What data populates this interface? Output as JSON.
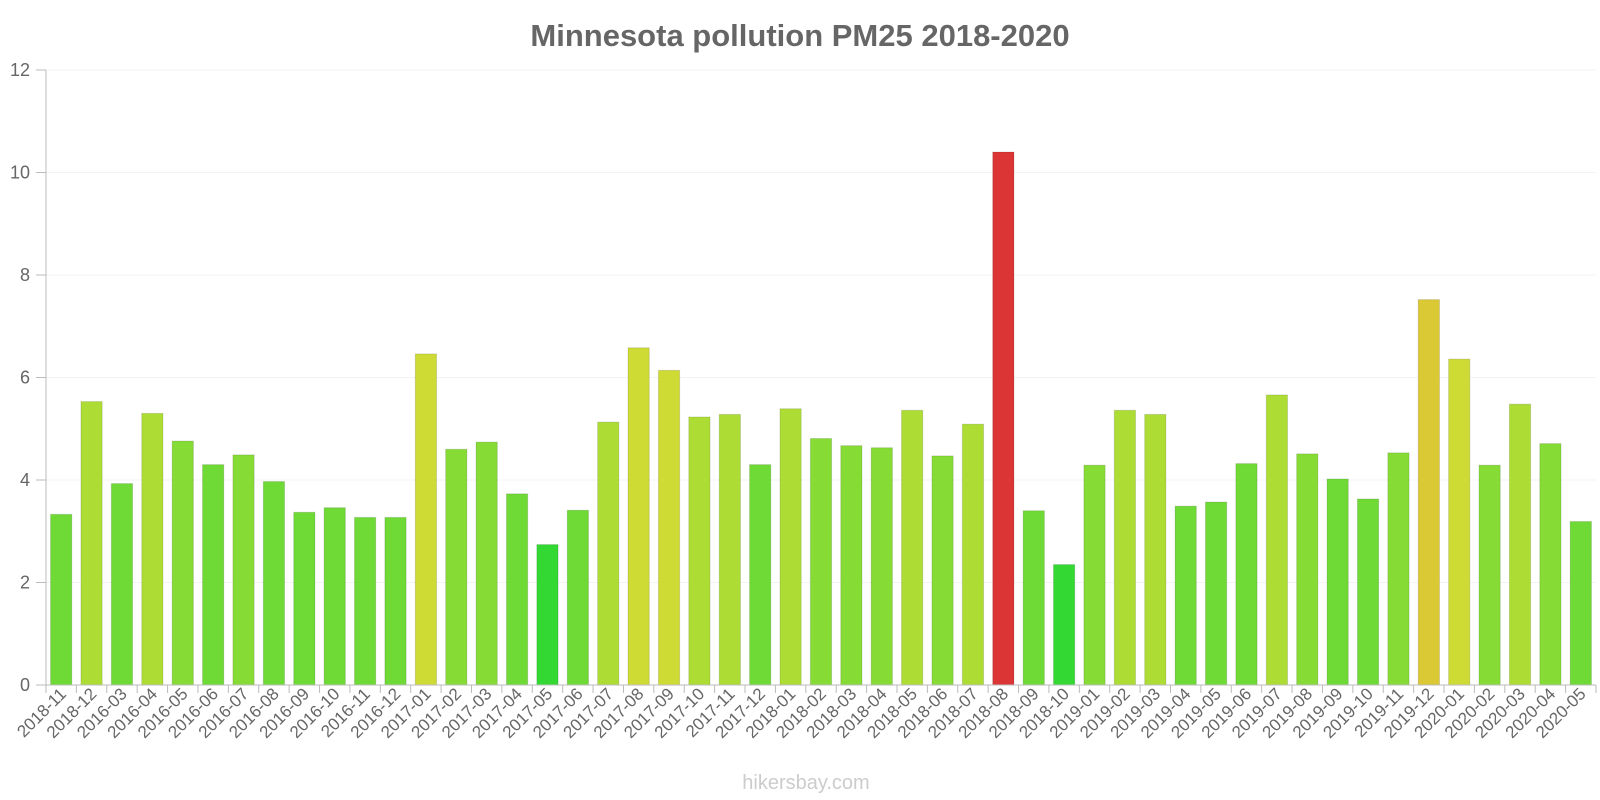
{
  "chart_data": {
    "type": "bar",
    "title": "Minnesota pollution PM25 2018-2020",
    "xlabel": "",
    "ylabel": "",
    "ylim": [
      0,
      12
    ],
    "yticks": [
      0,
      2,
      4,
      6,
      8,
      10,
      12
    ],
    "grid": true,
    "legend": "none",
    "categories": [
      "2018-11",
      "2018-12",
      "2016-03",
      "2016-04",
      "2016-05",
      "2016-06",
      "2016-07",
      "2016-08",
      "2016-09",
      "2016-10",
      "2016-11",
      "2016-12",
      "2017-01",
      "2017-02",
      "2017-03",
      "2017-04",
      "2017-05",
      "2017-06",
      "2017-07",
      "2017-08",
      "2017-09",
      "2017-10",
      "2017-11",
      "2017-12",
      "2018-01",
      "2018-02",
      "2018-03",
      "2018-04",
      "2018-05",
      "2018-06",
      "2018-07",
      "2018-08",
      "2018-09",
      "2018-10",
      "2019-01",
      "2019-02",
      "2019-03",
      "2019-04",
      "2019-05",
      "2019-06",
      "2019-07",
      "2019-08",
      "2019-09",
      "2019-10",
      "2019-11",
      "2019-12",
      "2020-01",
      "2020-02",
      "2020-03",
      "2020-04",
      "2020-05"
    ],
    "values": [
      3.33,
      5.53,
      3.93,
      5.3,
      4.76,
      4.3,
      4.49,
      3.97,
      3.37,
      3.46,
      3.27,
      3.27,
      6.46,
      4.6,
      4.74,
      3.73,
      2.74,
      3.41,
      5.13,
      6.58,
      6.14,
      5.23,
      5.28,
      4.3,
      5.39,
      4.81,
      4.67,
      4.63,
      5.36,
      4.47,
      5.09,
      10.4,
      3.4,
      2.35,
      4.29,
      5.36,
      5.28,
      3.49,
      3.57,
      4.32,
      5.66,
      4.51,
      4.02,
      3.63,
      4.53,
      7.52,
      6.36,
      4.29,
      5.48,
      4.71,
      3.19
    ],
    "colors": [
      "#6fda35",
      "#addd35",
      "#6fda35",
      "#addd35",
      "#87db35",
      "#6fda35",
      "#87db35",
      "#6fda35",
      "#6fda35",
      "#6fda35",
      "#6fda35",
      "#6fda35",
      "#cfdb35",
      "#87db35",
      "#87db35",
      "#6fda35",
      "#33d833",
      "#6fda35",
      "#addd35",
      "#cfdb35",
      "#cfdb35",
      "#addd35",
      "#addd35",
      "#6fda35",
      "#addd35",
      "#87db35",
      "#87db35",
      "#87db35",
      "#addd35",
      "#87db35",
      "#addd35",
      "#db3535",
      "#6fda35",
      "#33d833",
      "#87db35",
      "#addd35",
      "#addd35",
      "#6fda35",
      "#6fda35",
      "#6fda35",
      "#addd35",
      "#87db35",
      "#6fda35",
      "#6fda35",
      "#87db35",
      "#dbc835",
      "#cfdb35",
      "#87db35",
      "#addd35",
      "#87db35",
      "#6fda35"
    ]
  },
  "footer": {
    "watermark": "hikersbay.com"
  }
}
